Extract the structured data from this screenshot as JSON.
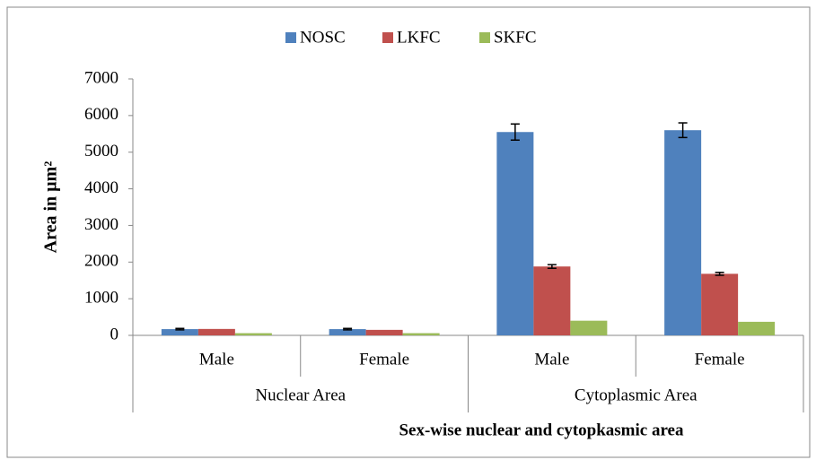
{
  "chart_data": {
    "type": "bar",
    "ylabel": "Area in µm²",
    "xlabel": "Sex-wise nuclear and cytopkasmic area",
    "groups": [
      {
        "name": "Nuclear Area",
        "categories": [
          "Male",
          "Female"
        ]
      },
      {
        "name": "Cytoplasmic Area",
        "categories": [
          "Male",
          "Female"
        ]
      }
    ],
    "series": [
      {
        "name": "NOSC",
        "color": "#4f81bd",
        "values": [
          170,
          170,
          5550,
          5600
        ],
        "errors": [
          20,
          20,
          220,
          200
        ]
      },
      {
        "name": "LKFC",
        "color": "#c0504d",
        "values": [
          175,
          150,
          1880,
          1680
        ],
        "errors": [
          null,
          null,
          50,
          40
        ]
      },
      {
        "name": "SKFC",
        "color": "#9bbb59",
        "values": [
          60,
          60,
          400,
          370
        ],
        "errors": [
          null,
          null,
          null,
          null
        ]
      }
    ],
    "ylim": [
      0,
      7000
    ],
    "yticks": [
      0,
      1000,
      2000,
      3000,
      4000,
      5000,
      6000,
      7000
    ],
    "grid": false,
    "legend": "top"
  }
}
